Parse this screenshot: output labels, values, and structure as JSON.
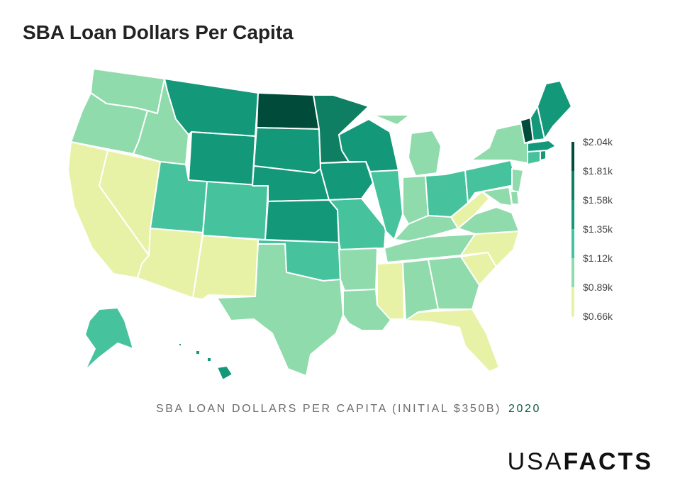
{
  "title": "SBA Loan Dollars Per Capita",
  "caption": {
    "label": "SBA LOAN DOLLARS PER CAPITA (INITIAL $350B)",
    "year": "2020"
  },
  "brand": {
    "light": "USA",
    "bold": "FACTS"
  },
  "colors": {
    "l1": "#e8f2a6",
    "l2": "#8fdbab",
    "l3": "#46c29d",
    "l4": "#14987a",
    "l5": "#0e7f63",
    "l6": "#004b3a"
  },
  "legend": {
    "ticks": [
      "$2.04k",
      "$1.81k",
      "$1.58k",
      "$1.35k",
      "$1.12k",
      "$0.89k",
      "$0.66k"
    ],
    "range": [
      0.66,
      2.04
    ],
    "stops": [
      "#004b3a",
      "#0e7f63",
      "#14987a",
      "#46c29d",
      "#8fdbab",
      "#e8f2a6"
    ]
  },
  "chart_data": {
    "type": "heatmap",
    "unit": "$k per capita",
    "states": [
      {
        "code": "WA",
        "level": "l2"
      },
      {
        "code": "OR",
        "level": "l2"
      },
      {
        "code": "CA",
        "level": "l1"
      },
      {
        "code": "NV",
        "level": "l1"
      },
      {
        "code": "ID",
        "level": "l2"
      },
      {
        "code": "MT",
        "level": "l4"
      },
      {
        "code": "WY",
        "level": "l4"
      },
      {
        "code": "UT",
        "level": "l3"
      },
      {
        "code": "AZ",
        "level": "l1"
      },
      {
        "code": "CO",
        "level": "l3"
      },
      {
        "code": "NM",
        "level": "l1"
      },
      {
        "code": "ND",
        "level": "l6"
      },
      {
        "code": "SD",
        "level": "l4"
      },
      {
        "code": "NE",
        "level": "l4"
      },
      {
        "code": "KS",
        "level": "l4"
      },
      {
        "code": "OK",
        "level": "l3"
      },
      {
        "code": "TX",
        "level": "l2"
      },
      {
        "code": "MN",
        "level": "l5"
      },
      {
        "code": "IA",
        "level": "l4"
      },
      {
        "code": "MO",
        "level": "l3"
      },
      {
        "code": "AR",
        "level": "l2"
      },
      {
        "code": "LA",
        "level": "l2"
      },
      {
        "code": "WI",
        "level": "l4"
      },
      {
        "code": "IL",
        "level": "l3"
      },
      {
        "code": "MI",
        "level": "l2"
      },
      {
        "code": "IN",
        "level": "l2"
      },
      {
        "code": "OH",
        "level": "l3"
      },
      {
        "code": "KY",
        "level": "l2"
      },
      {
        "code": "TN",
        "level": "l2"
      },
      {
        "code": "MS",
        "level": "l1"
      },
      {
        "code": "AL",
        "level": "l2"
      },
      {
        "code": "GA",
        "level": "l2"
      },
      {
        "code": "FL",
        "level": "l1"
      },
      {
        "code": "SC",
        "level": "l1"
      },
      {
        "code": "NC",
        "level": "l1"
      },
      {
        "code": "VA",
        "level": "l2"
      },
      {
        "code": "WV",
        "level": "l1"
      },
      {
        "code": "PA",
        "level": "l3"
      },
      {
        "code": "NY",
        "level": "l2"
      },
      {
        "code": "NJ",
        "level": "l2"
      },
      {
        "code": "DE",
        "level": "l2"
      },
      {
        "code": "MD",
        "level": "l2"
      },
      {
        "code": "CT",
        "level": "l3"
      },
      {
        "code": "RI",
        "level": "l4"
      },
      {
        "code": "MA",
        "level": "l4"
      },
      {
        "code": "VT",
        "level": "l6"
      },
      {
        "code": "NH",
        "level": "l4"
      },
      {
        "code": "ME",
        "level": "l4"
      },
      {
        "code": "AK",
        "level": "l3"
      },
      {
        "code": "HI",
        "level": "l4"
      }
    ]
  }
}
